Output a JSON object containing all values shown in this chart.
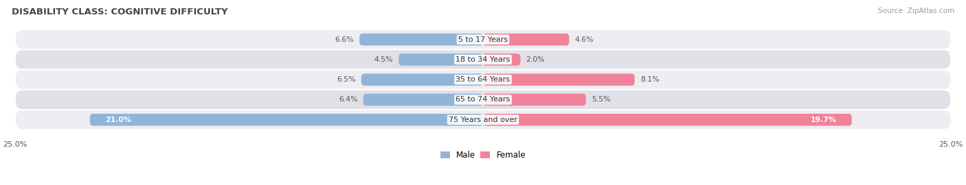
{
  "title": "DISABILITY CLASS: COGNITIVE DIFFICULTY",
  "source": "Source: ZipAtlas.com",
  "categories": [
    "5 to 17 Years",
    "18 to 34 Years",
    "35 to 64 Years",
    "65 to 74 Years",
    "75 Years and over"
  ],
  "male_values": [
    6.6,
    4.5,
    6.5,
    6.4,
    21.0
  ],
  "female_values": [
    4.6,
    2.0,
    8.1,
    5.5,
    19.7
  ],
  "xlim": 25.0,
  "male_color": "#92b4d8",
  "female_color": "#f0839a",
  "row_bg_even": "#ededf2",
  "row_bg_odd": "#e0e0e8",
  "title_fontsize": 9.5,
  "label_fontsize": 8.0,
  "value_fontsize": 7.8,
  "axis_label_fontsize": 8.0,
  "legend_fontsize": 8.5
}
